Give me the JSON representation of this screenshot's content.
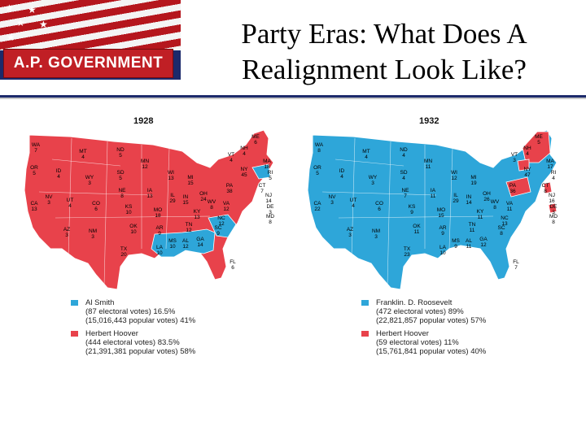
{
  "header": {
    "banner_label": "A.P. GOVERNMENT",
    "title_line1": "Party Eras: What Does A",
    "title_line2": "Realignment Look Like?"
  },
  "colors": {
    "republican_red": "#e8424b",
    "democratic_blue": "#2ea6d9",
    "banner_red": "#c01f25",
    "banner_navy": "#1c2a6b"
  },
  "maps": [
    {
      "year": "1928",
      "base_party": "republican",
      "state_labels": [
        {
          "name": "WA",
          "votes": "7"
        },
        {
          "name": "OR",
          "votes": "5"
        },
        {
          "name": "CA",
          "votes": "13"
        },
        {
          "name": "ID",
          "votes": "4"
        },
        {
          "name": "NV",
          "votes": "3"
        },
        {
          "name": "MT",
          "votes": "4"
        },
        {
          "name": "WY",
          "votes": "3"
        },
        {
          "name": "UT",
          "votes": "4"
        },
        {
          "name": "AZ",
          "votes": "3"
        },
        {
          "name": "CO",
          "votes": "6"
        },
        {
          "name": "NM",
          "votes": "3"
        },
        {
          "name": "ND",
          "votes": "5"
        },
        {
          "name": "SD",
          "votes": "5"
        },
        {
          "name": "NE",
          "votes": "8"
        },
        {
          "name": "KS",
          "votes": "10"
        },
        {
          "name": "OK",
          "votes": "10"
        },
        {
          "name": "TX",
          "votes": "20"
        },
        {
          "name": "MN",
          "votes": "12"
        },
        {
          "name": "IA",
          "votes": "13"
        },
        {
          "name": "MO",
          "votes": "18"
        },
        {
          "name": "AR",
          "votes": "9"
        },
        {
          "name": "LA",
          "votes": "10"
        },
        {
          "name": "WI",
          "votes": "13"
        },
        {
          "name": "IL",
          "votes": "29"
        },
        {
          "name": "MI",
          "votes": "15"
        },
        {
          "name": "IN",
          "votes": "15"
        },
        {
          "name": "OH",
          "votes": "24"
        },
        {
          "name": "KY",
          "votes": "13"
        },
        {
          "name": "TN",
          "votes": "12"
        },
        {
          "name": "MS",
          "votes": "10"
        },
        {
          "name": "AL",
          "votes": "12"
        },
        {
          "name": "GA",
          "votes": "14"
        },
        {
          "name": "FL",
          "votes": "6"
        },
        {
          "name": "SC",
          "votes": "9"
        },
        {
          "name": "NC",
          "votes": "12"
        },
        {
          "name": "VA",
          "votes": "12"
        },
        {
          "name": "WV",
          "votes": "8"
        },
        {
          "name": "PA",
          "votes": "38"
        },
        {
          "name": "NY",
          "votes": "45"
        },
        {
          "name": "ME",
          "votes": "6"
        },
        {
          "name": "NH",
          "votes": "4"
        },
        {
          "name": "VT",
          "votes": "4"
        },
        {
          "name": "MA",
          "votes": "18"
        },
        {
          "name": "RI",
          "votes": "5"
        },
        {
          "name": "CT",
          "votes": "7"
        },
        {
          "name": "NJ",
          "votes": "14"
        },
        {
          "name": "DE",
          "votes": "3"
        },
        {
          "name": "MD",
          "votes": "8"
        }
      ],
      "legend": [
        {
          "party": "democratic",
          "candidate": "Al Smith",
          "electoral": "(87 electoral votes) 16.5%",
          "popular": "(15,016,443 popular votes) 41%"
        },
        {
          "party": "republican",
          "candidate": "Herbert Hoover",
          "electoral": "(444 electoral votes) 83.5%",
          "popular": "(21,391,381 popular votes) 58%"
        }
      ]
    },
    {
      "year": "1932",
      "base_party": "democratic",
      "state_labels": [
        {
          "name": "WA",
          "votes": "8"
        },
        {
          "name": "OR",
          "votes": "5"
        },
        {
          "name": "CA",
          "votes": "22"
        },
        {
          "name": "ID",
          "votes": "4"
        },
        {
          "name": "NV",
          "votes": "3"
        },
        {
          "name": "MT",
          "votes": "4"
        },
        {
          "name": "WY",
          "votes": "3"
        },
        {
          "name": "UT",
          "votes": "4"
        },
        {
          "name": "AZ",
          "votes": "3"
        },
        {
          "name": "CO",
          "votes": "6"
        },
        {
          "name": "NM",
          "votes": "3"
        },
        {
          "name": "ND",
          "votes": "4"
        },
        {
          "name": "SD",
          "votes": "4"
        },
        {
          "name": "NE",
          "votes": "7"
        },
        {
          "name": "KS",
          "votes": "9"
        },
        {
          "name": "OK",
          "votes": "11"
        },
        {
          "name": "TX",
          "votes": "23"
        },
        {
          "name": "MN",
          "votes": "11"
        },
        {
          "name": "IA",
          "votes": "11"
        },
        {
          "name": "MO",
          "votes": "15"
        },
        {
          "name": "AR",
          "votes": "9"
        },
        {
          "name": "LA",
          "votes": "10"
        },
        {
          "name": "WI",
          "votes": "12"
        },
        {
          "name": "IL",
          "votes": "29"
        },
        {
          "name": "MI",
          "votes": "19"
        },
        {
          "name": "IN",
          "votes": "14"
        },
        {
          "name": "OH",
          "votes": "26"
        },
        {
          "name": "KY",
          "votes": "11"
        },
        {
          "name": "TN",
          "votes": "11"
        },
        {
          "name": "MS",
          "votes": "9"
        },
        {
          "name": "AL",
          "votes": "11"
        },
        {
          "name": "GA",
          "votes": "12"
        },
        {
          "name": "FL",
          "votes": "7"
        },
        {
          "name": "SC",
          "votes": "8"
        },
        {
          "name": "NC",
          "votes": "13"
        },
        {
          "name": "VA",
          "votes": "11"
        },
        {
          "name": "WV",
          "votes": "8"
        },
        {
          "name": "PA",
          "votes": "36"
        },
        {
          "name": "NY",
          "votes": "47"
        },
        {
          "name": "ME",
          "votes": "5"
        },
        {
          "name": "NH",
          "votes": "4"
        },
        {
          "name": "VT",
          "votes": "3"
        },
        {
          "name": "MA",
          "votes": "17"
        },
        {
          "name": "RI",
          "votes": "4"
        },
        {
          "name": "CT",
          "votes": "8"
        },
        {
          "name": "NJ",
          "votes": "16"
        },
        {
          "name": "DE",
          "votes": "3"
        },
        {
          "name": "MD",
          "votes": "8"
        }
      ],
      "legend": [
        {
          "party": "democratic",
          "candidate": "Franklin. D. Roosevelt",
          "electoral": "(472 electoral votes) 89%",
          "popular": "(22,821,857 popular votes) 57%"
        },
        {
          "party": "republican",
          "candidate": "Herbert Hoover",
          "electoral": "(59 electoral votes) 11%",
          "popular": "(15,761,841 popular votes) 40%"
        }
      ]
    }
  ]
}
